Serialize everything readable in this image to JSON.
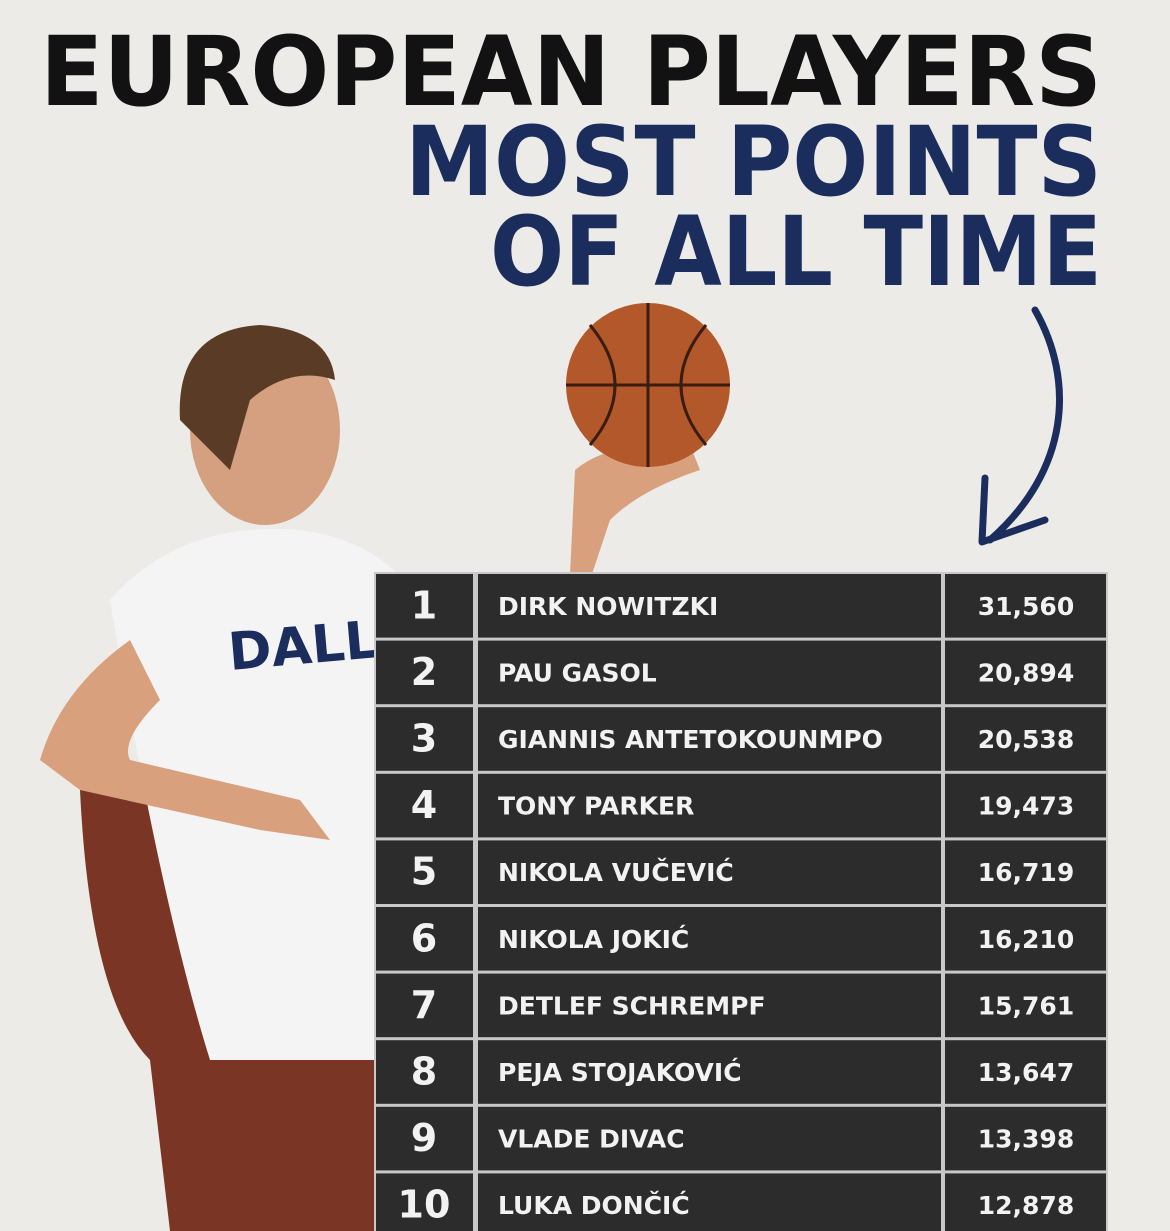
{
  "header": {
    "title": [
      "EUROPEAN PLAYERS",
      "MOST POINTS",
      "OF ALL TIME"
    ]
  },
  "table": {
    "rows": [
      [
        1,
        "DIRK NOWITZKI",
        "31,560"
      ],
      [
        2,
        "PAU GASOL",
        "20,894"
      ],
      [
        3,
        "GIANNIS ANTETOKOUNMPO",
        "20,538"
      ],
      [
        4,
        "TONY PARKER",
        "19,473"
      ],
      [
        5,
        "NIKOLA VUČEVIĆ",
        "16,719"
      ],
      [
        6,
        "NIKOLA JOKIĆ",
        "16,210"
      ],
      [
        7,
        "DETLEF SCHREMPF",
        "15,761"
      ],
      [
        8,
        "PEJA STOJAKOVIĆ",
        "13,647"
      ],
      [
        9,
        "VLADE DIVAC",
        "13,398"
      ],
      [
        10,
        "LUKA DONČIĆ",
        "12,878"
      ]
    ]
  }
}
